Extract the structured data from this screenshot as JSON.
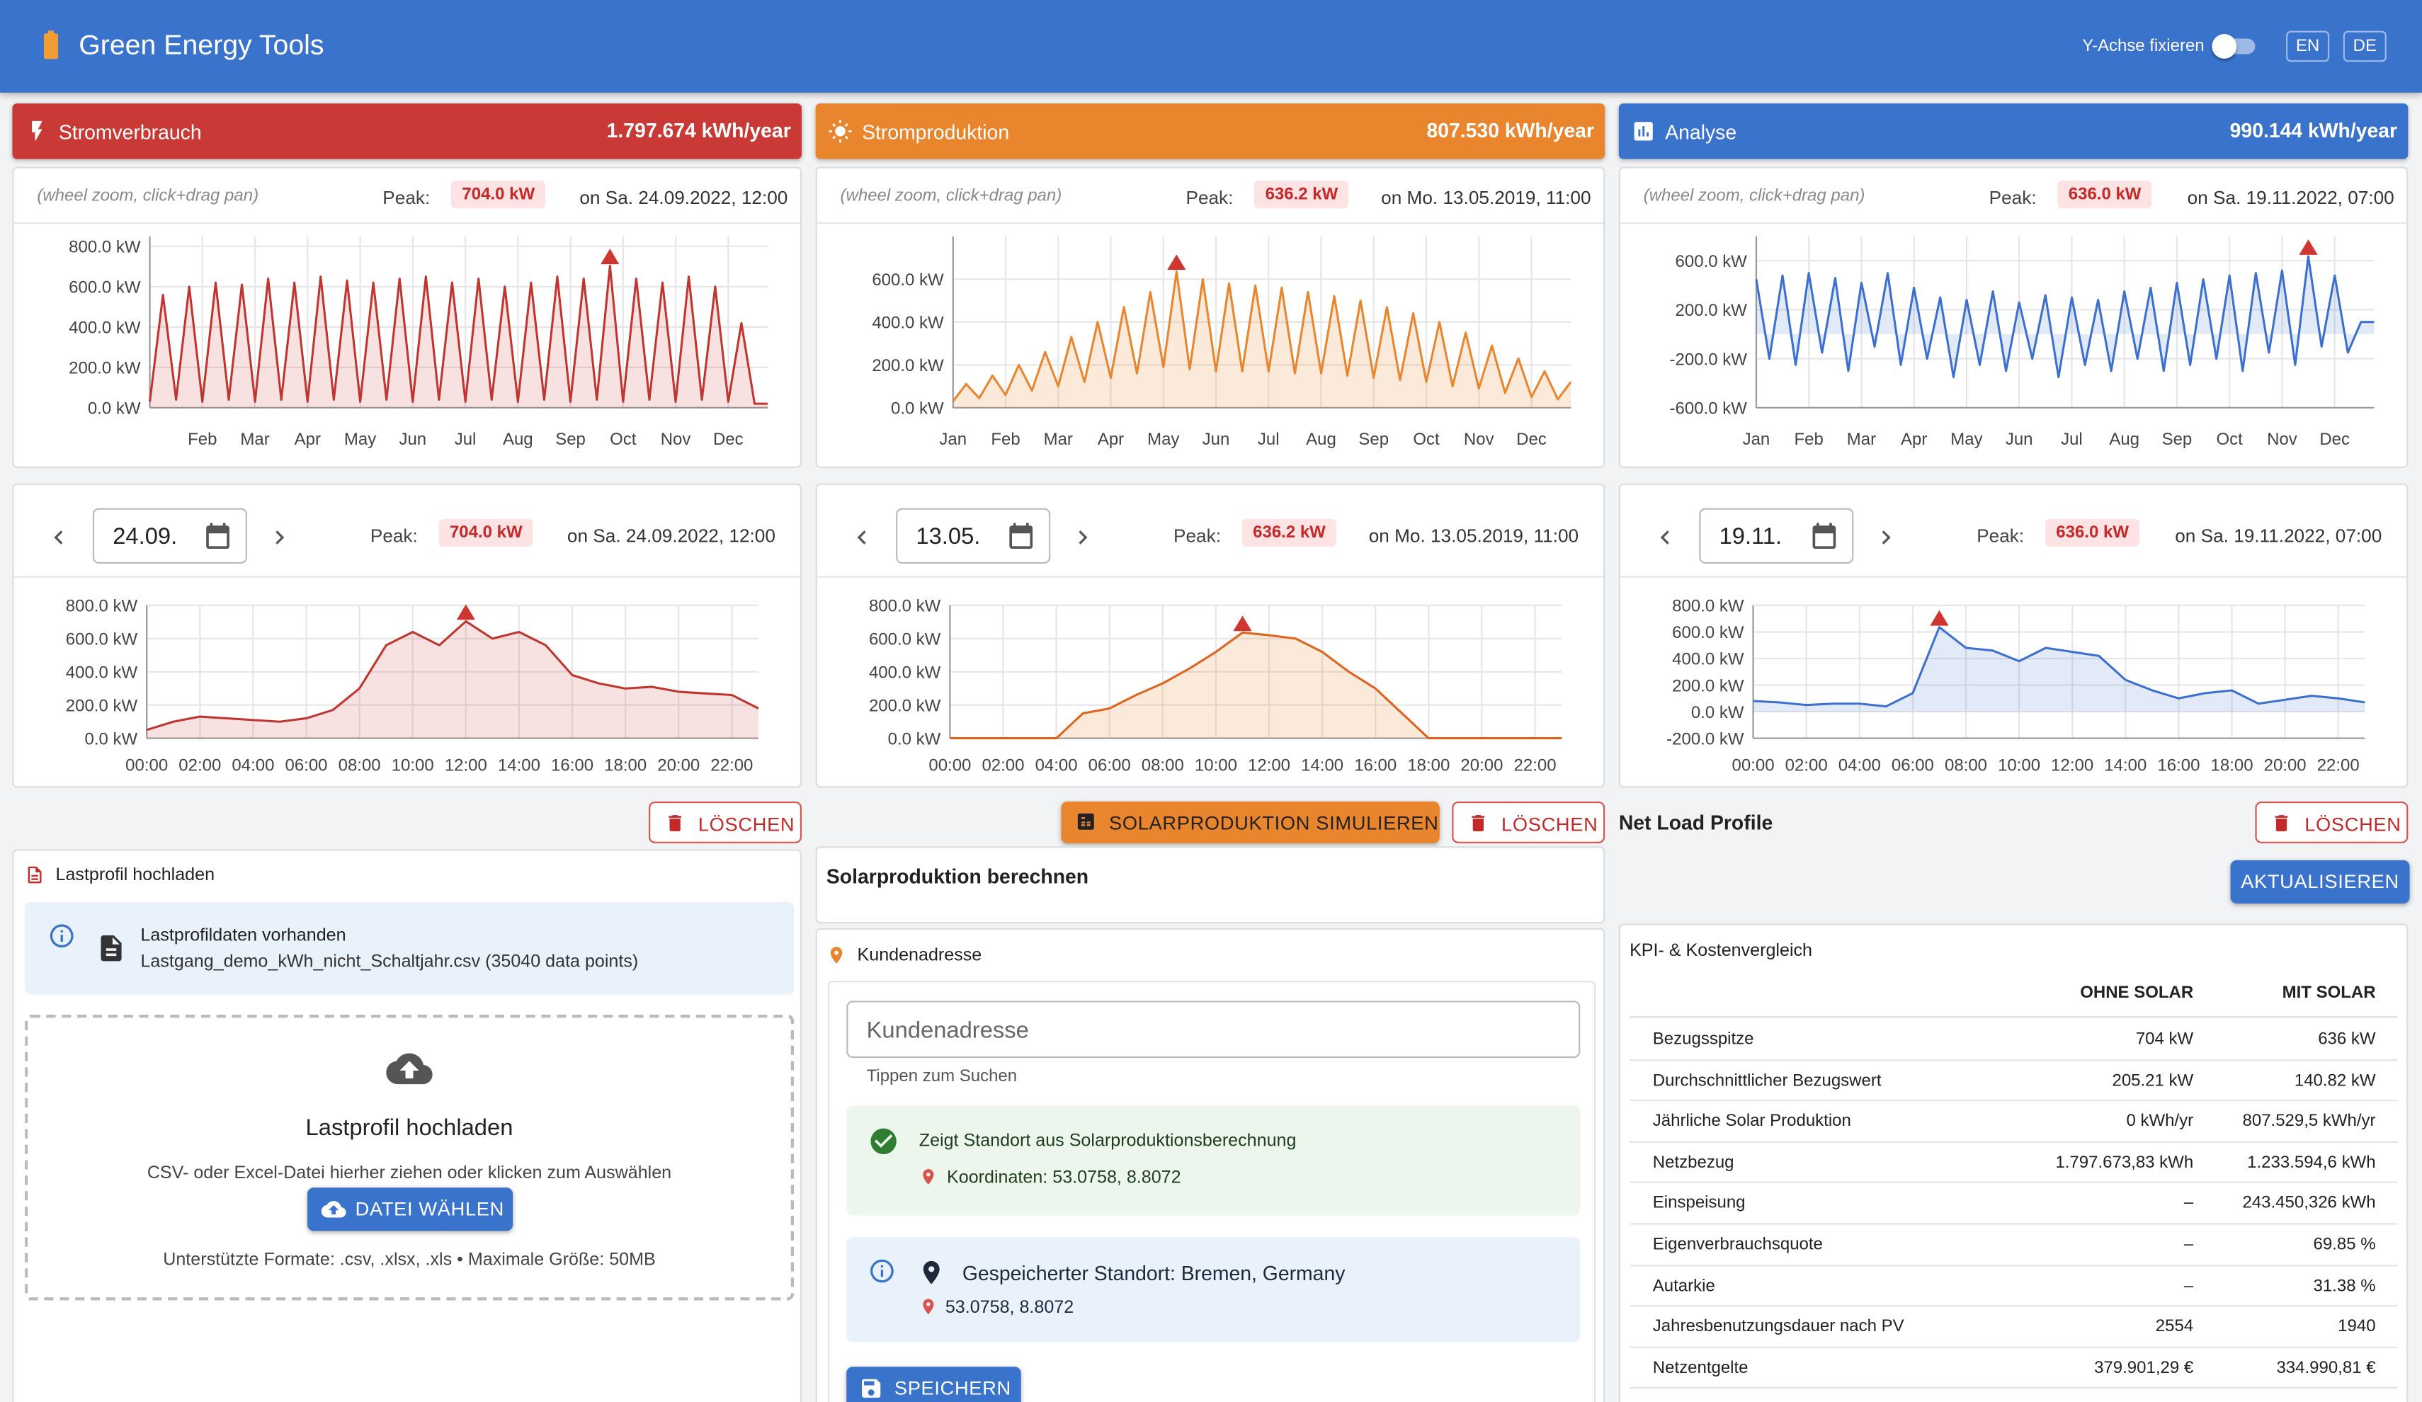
{
  "header": {
    "title": "Green Energy Tools",
    "toggle_label": "Y-Achse fixieren",
    "languages": [
      "EN",
      "DE"
    ]
  },
  "panels": [
    {
      "title": "Stromverbrauch",
      "total": "1.797.674 kWh/year",
      "color": "#c93a36",
      "hint": "(wheel zoom, click+drag pan)",
      "peak_label": "Peak:",
      "peak_value": "704.0 kW",
      "peak_time": "on Sa. 24.09.2022, 12:00",
      "date": "24.09.",
      "year_chart": {
        "type": "area",
        "color": "#c0352f",
        "ylim": [
          0,
          850
        ],
        "yticks": [
          {
            "value": 0,
            "label": "0.0 kW"
          },
          {
            "value": 200,
            "label": "200.0 kW"
          },
          {
            "value": 400,
            "label": "400.0 kW"
          },
          {
            "value": 600,
            "label": "600.0 kW"
          },
          {
            "value": 800,
            "label": "800.0 kW"
          }
        ],
        "categories": [
          null,
          null,
          null,
          null,
          "Feb",
          null,
          null,
          null,
          "Mar",
          null,
          null,
          null,
          "Apr",
          null,
          null,
          null,
          "May",
          null,
          null,
          null,
          "Jun",
          null,
          null,
          null,
          "Jul",
          null,
          null,
          null,
          "Aug",
          null,
          null,
          null,
          "Sep",
          null,
          null,
          null,
          "Oct",
          null,
          null,
          null,
          "Nov",
          null,
          null,
          null,
          "Dec",
          null,
          null,
          null
        ],
        "values": [
          30,
          560,
          40,
          600,
          30,
          620,
          40,
          610,
          30,
          640,
          40,
          620,
          30,
          650,
          40,
          630,
          30,
          620,
          40,
          640,
          30,
          650,
          40,
          620,
          30,
          640,
          40,
          600,
          30,
          620,
          40,
          650,
          30,
          640,
          40,
          704,
          30,
          640,
          40,
          620,
          30,
          650,
          40,
          600,
          30,
          420,
          20,
          20
        ]
      },
      "day_chart": {
        "type": "area",
        "color": "#c0352f",
        "ylim": [
          0,
          800
        ],
        "yticks": [
          {
            "value": 0,
            "label": "0.0 kW"
          },
          {
            "value": 200,
            "label": "200.0 kW"
          },
          {
            "value": 400,
            "label": "400.0 kW"
          },
          {
            "value": 600,
            "label": "600.0 kW"
          },
          {
            "value": 800,
            "label": "800.0 kW"
          }
        ],
        "categories": [
          "00:00",
          null,
          "02:00",
          null,
          "04:00",
          null,
          "06:00",
          null,
          "08:00",
          null,
          "10:00",
          null,
          "12:00",
          null,
          "14:00",
          null,
          "16:00",
          null,
          "18:00",
          null,
          "20:00",
          null,
          "22:00",
          null
        ],
        "values": [
          50,
          100,
          130,
          120,
          110,
          100,
          120,
          170,
          300,
          560,
          640,
          560,
          704,
          600,
          640,
          560,
          380,
          330,
          300,
          310,
          280,
          270,
          260,
          180
        ]
      }
    },
    {
      "title": "Stromproduktion",
      "total": "807.530 kWh/year",
      "color": "#e8852d",
      "hint": "(wheel zoom, click+drag pan)",
      "peak_label": "Peak:",
      "peak_value": "636.2 kW",
      "peak_time": "on Mo. 13.05.2019, 11:00",
      "date": "13.05.",
      "year_chart": {
        "type": "area",
        "color": "#e8852d",
        "ylim": [
          0,
          800
        ],
        "yticks": [
          {
            "value": 0,
            "label": "0.0 kW"
          },
          {
            "value": 200,
            "label": "200.0 kW"
          },
          {
            "value": 400,
            "label": "400.0 kW"
          },
          {
            "value": 600,
            "label": "600.0 kW"
          }
        ],
        "categories": [
          "Jan",
          null,
          null,
          null,
          "Feb",
          null,
          null,
          null,
          "Mar",
          null,
          null,
          null,
          "Apr",
          null,
          null,
          null,
          "May",
          null,
          null,
          null,
          "Jun",
          null,
          null,
          null,
          "Jul",
          null,
          null,
          null,
          "Aug",
          null,
          null,
          null,
          "Sep",
          null,
          null,
          null,
          "Oct",
          null,
          null,
          null,
          "Nov",
          null,
          null,
          null,
          "Dec",
          null,
          null,
          null
        ],
        "values": [
          30,
          110,
          45,
          150,
          60,
          200,
          80,
          260,
          100,
          330,
          120,
          400,
          140,
          470,
          160,
          540,
          190,
          636,
          180,
          600,
          170,
          580,
          170,
          570,
          170,
          560,
          160,
          540,
          160,
          520,
          150,
          500,
          140,
          470,
          130,
          440,
          120,
          400,
          100,
          350,
          90,
          290,
          70,
          230,
          50,
          170,
          40,
          120
        ]
      },
      "day_chart": {
        "type": "area",
        "color": "#e0631d",
        "ylim": [
          0,
          800
        ],
        "yticks": [
          {
            "value": 0,
            "label": "0.0 kW"
          },
          {
            "value": 200,
            "label": "200.0 kW"
          },
          {
            "value": 400,
            "label": "400.0 kW"
          },
          {
            "value": 600,
            "label": "600.0 kW"
          },
          {
            "value": 800,
            "label": "800.0 kW"
          }
        ],
        "categories": [
          "00:00",
          null,
          "02:00",
          null,
          "04:00",
          null,
          "06:00",
          null,
          "08:00",
          null,
          "10:00",
          null,
          "12:00",
          null,
          "14:00",
          null,
          "16:00",
          null,
          "18:00",
          null,
          "20:00",
          null,
          "22:00",
          null
        ],
        "values": [
          0,
          0,
          0,
          0,
          0,
          150,
          180,
          260,
          330,
          420,
          520,
          636,
          620,
          600,
          520,
          400,
          300,
          150,
          0,
          0,
          0,
          0,
          0,
          0
        ]
      }
    },
    {
      "title": "Analyse",
      "total": "990.144 kWh/year",
      "color": "#3a73cc",
      "hint": "(wheel zoom, click+drag pan)",
      "peak_label": "Peak:",
      "peak_value": "636.0 kW",
      "peak_time": "on Sa. 19.11.2022, 07:00",
      "date": "19.11.",
      "year_chart": {
        "type": "area",
        "color": "#3b6fd0",
        "ylim": [
          -600,
          800
        ],
        "yticks": [
          {
            "value": -600,
            "label": "-600.0 kW"
          },
          {
            "value": -200,
            "label": "-200.0 kW"
          },
          {
            "value": 200,
            "label": "200.0 kW"
          },
          {
            "value": 600,
            "label": "600.0 kW"
          }
        ],
        "categories": [
          "Jan",
          null,
          null,
          null,
          "Feb",
          null,
          null,
          null,
          "Mar",
          null,
          null,
          null,
          "Apr",
          null,
          null,
          null,
          "May",
          null,
          null,
          null,
          "Jun",
          null,
          null,
          null,
          "Jul",
          null,
          null,
          null,
          "Aug",
          null,
          null,
          null,
          "Sep",
          null,
          null,
          null,
          "Oct",
          null,
          null,
          null,
          "Nov",
          null,
          null,
          null,
          "Dec",
          null,
          null,
          null
        ],
        "values": [
          450,
          -200,
          480,
          -250,
          500,
          -150,
          460,
          -300,
          420,
          -100,
          500,
          -250,
          380,
          -200,
          300,
          -350,
          280,
          -250,
          350,
          -300,
          260,
          -200,
          320,
          -350,
          300,
          -250,
          280,
          -300,
          350,
          -200,
          380,
          -300,
          420,
          -250,
          450,
          -200,
          480,
          -300,
          500,
          -150,
          520,
          -250,
          636,
          -100,
          480,
          -150,
          100,
          100
        ]
      },
      "day_chart": {
        "type": "area",
        "color": "#3b6fd0",
        "ylim": [
          -200,
          800
        ],
        "yticks": [
          {
            "value": -200,
            "label": "-200.0 kW"
          },
          {
            "value": 0,
            "label": "0.0 kW"
          },
          {
            "value": 200,
            "label": "200.0 kW"
          },
          {
            "value": 400,
            "label": "400.0 kW"
          },
          {
            "value": 600,
            "label": "600.0 kW"
          },
          {
            "value": 800,
            "label": "800.0 kW"
          }
        ],
        "categories": [
          "00:00",
          null,
          "02:00",
          null,
          "04:00",
          null,
          "06:00",
          null,
          "08:00",
          null,
          "10:00",
          null,
          "12:00",
          null,
          "14:00",
          null,
          "16:00",
          null,
          "18:00",
          null,
          "20:00",
          null,
          "22:00",
          null
        ],
        "values": [
          80,
          70,
          50,
          60,
          60,
          40,
          140,
          636,
          480,
          460,
          380,
          480,
          450,
          420,
          240,
          160,
          100,
          140,
          160,
          60,
          90,
          120,
          100,
          70
        ]
      }
    }
  ],
  "controls": {
    "delete": "LÖSCHEN",
    "simulate": "SOLARPRODUKTION SIMULIEREN",
    "net_load": "Net Load Profile",
    "update": "AKTUALISIEREN"
  },
  "upload": {
    "title": "Lastprofil hochladen",
    "info_title": "Lastprofildaten vorhanden",
    "info_file": "Lastgang_demo_kWh_nicht_Schaltjahr.csv (35040 data points)",
    "drop_title": "Lastprofil hochladen",
    "drop_text": "CSV- oder Excel-Datei hierher ziehen oder klicken zum Auswählen",
    "button": "DATEI WÄHLEN",
    "formats": "Unterstützte Formate: .csv, .xlsx, .xls • Maximale Größe: 50MB"
  },
  "solar": {
    "title": "Solarproduktion berechnen",
    "address_label": "Kundenadresse",
    "address_placeholder": "Kundenadresse",
    "address_helper": "Tippen zum Suchen",
    "success_text": "Zeigt Standort aus Solarproduktionsberechnung",
    "coordinates": "Koordinaten: 53.0758, 8.8072",
    "saved_location": "Gespeicherter Standort: Bremen, Germany",
    "saved_coords": "53.0758, 8.8072",
    "save": "SPEICHERN"
  },
  "kpi": {
    "title": "KPI- & Kostenvergleich",
    "columns": [
      "OHNE SOLAR",
      "MIT SOLAR"
    ],
    "rows": [
      [
        "Bezugsspitze",
        "704 kW",
        "636 kW"
      ],
      [
        "Durchschnittlicher Bezugswert",
        "205.21 kW",
        "140.82 kW"
      ],
      [
        "Jährliche Solar Produktion",
        "0 kWh/yr",
        "807.529,5 kWh/yr"
      ],
      [
        "Netzbezug",
        "1.797.673,83 kWh",
        "1.233.594,6 kWh"
      ],
      [
        "Einspeisung",
        "–",
        "243.450,326 kWh"
      ],
      [
        "Eigenverbrauchsquote",
        "–",
        "69.85 %"
      ],
      [
        "Autarkie",
        "–",
        "31.38 %"
      ],
      [
        "Jahresbenutzungsdauer nach PV",
        "2554",
        "1940"
      ],
      [
        "Netzentgelte",
        "379.901,29 €",
        "334.990,81 €"
      ]
    ]
  }
}
